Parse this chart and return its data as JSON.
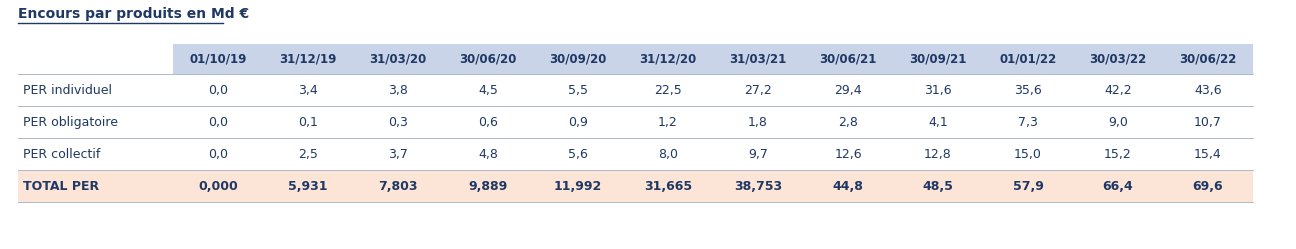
{
  "title": "Encours par produits en Md €",
  "columns": [
    "01/10/19",
    "31/12/19",
    "31/03/20",
    "30/06/20",
    "30/09/20",
    "31/12/20",
    "31/03/21",
    "30/06/21",
    "30/09/21",
    "01/01/22",
    "30/03/22",
    "30/06/22"
  ],
  "rows": [
    {
      "label": "PER individuel",
      "values": [
        "0,0",
        "3,4",
        "3,8",
        "4,5",
        "5,5",
        "22,5",
        "27,2",
        "29,4",
        "31,6",
        "35,6",
        "42,2",
        "43,6"
      ],
      "bold": false,
      "bg": null
    },
    {
      "label": "PER obligatoire",
      "values": [
        "0,0",
        "0,1",
        "0,3",
        "0,6",
        "0,9",
        "1,2",
        "1,8",
        "2,8",
        "4,1",
        "7,3",
        "9,0",
        "10,7"
      ],
      "bold": false,
      "bg": null
    },
    {
      "label": "PER collectif",
      "values": [
        "0,0",
        "2,5",
        "3,7",
        "4,8",
        "5,6",
        "8,0",
        "9,7",
        "12,6",
        "12,8",
        "15,0",
        "15,2",
        "15,4"
      ],
      "bold": false,
      "bg": null
    },
    {
      "label": "TOTAL PER",
      "values": [
        "0,000",
        "5,931",
        "7,803",
        "9,889",
        "11,992",
        "31,665",
        "38,753",
        "44,8",
        "48,5",
        "57,9",
        "66,4",
        "69,6"
      ],
      "bold": true,
      "bg": "#fce4d6"
    }
  ],
  "header_bg": "#c9d4e8",
  "data_text_color": "#1f3864",
  "label_text_color": "#1f3864",
  "bg_color": "#ffffff",
  "title_color": "#1f3864",
  "separator_color": "#b0b8c8",
  "title_fontsize": 10,
  "col_fontsize": 8.5,
  "row_label_fontsize": 9,
  "row_val_fontsize": 9
}
